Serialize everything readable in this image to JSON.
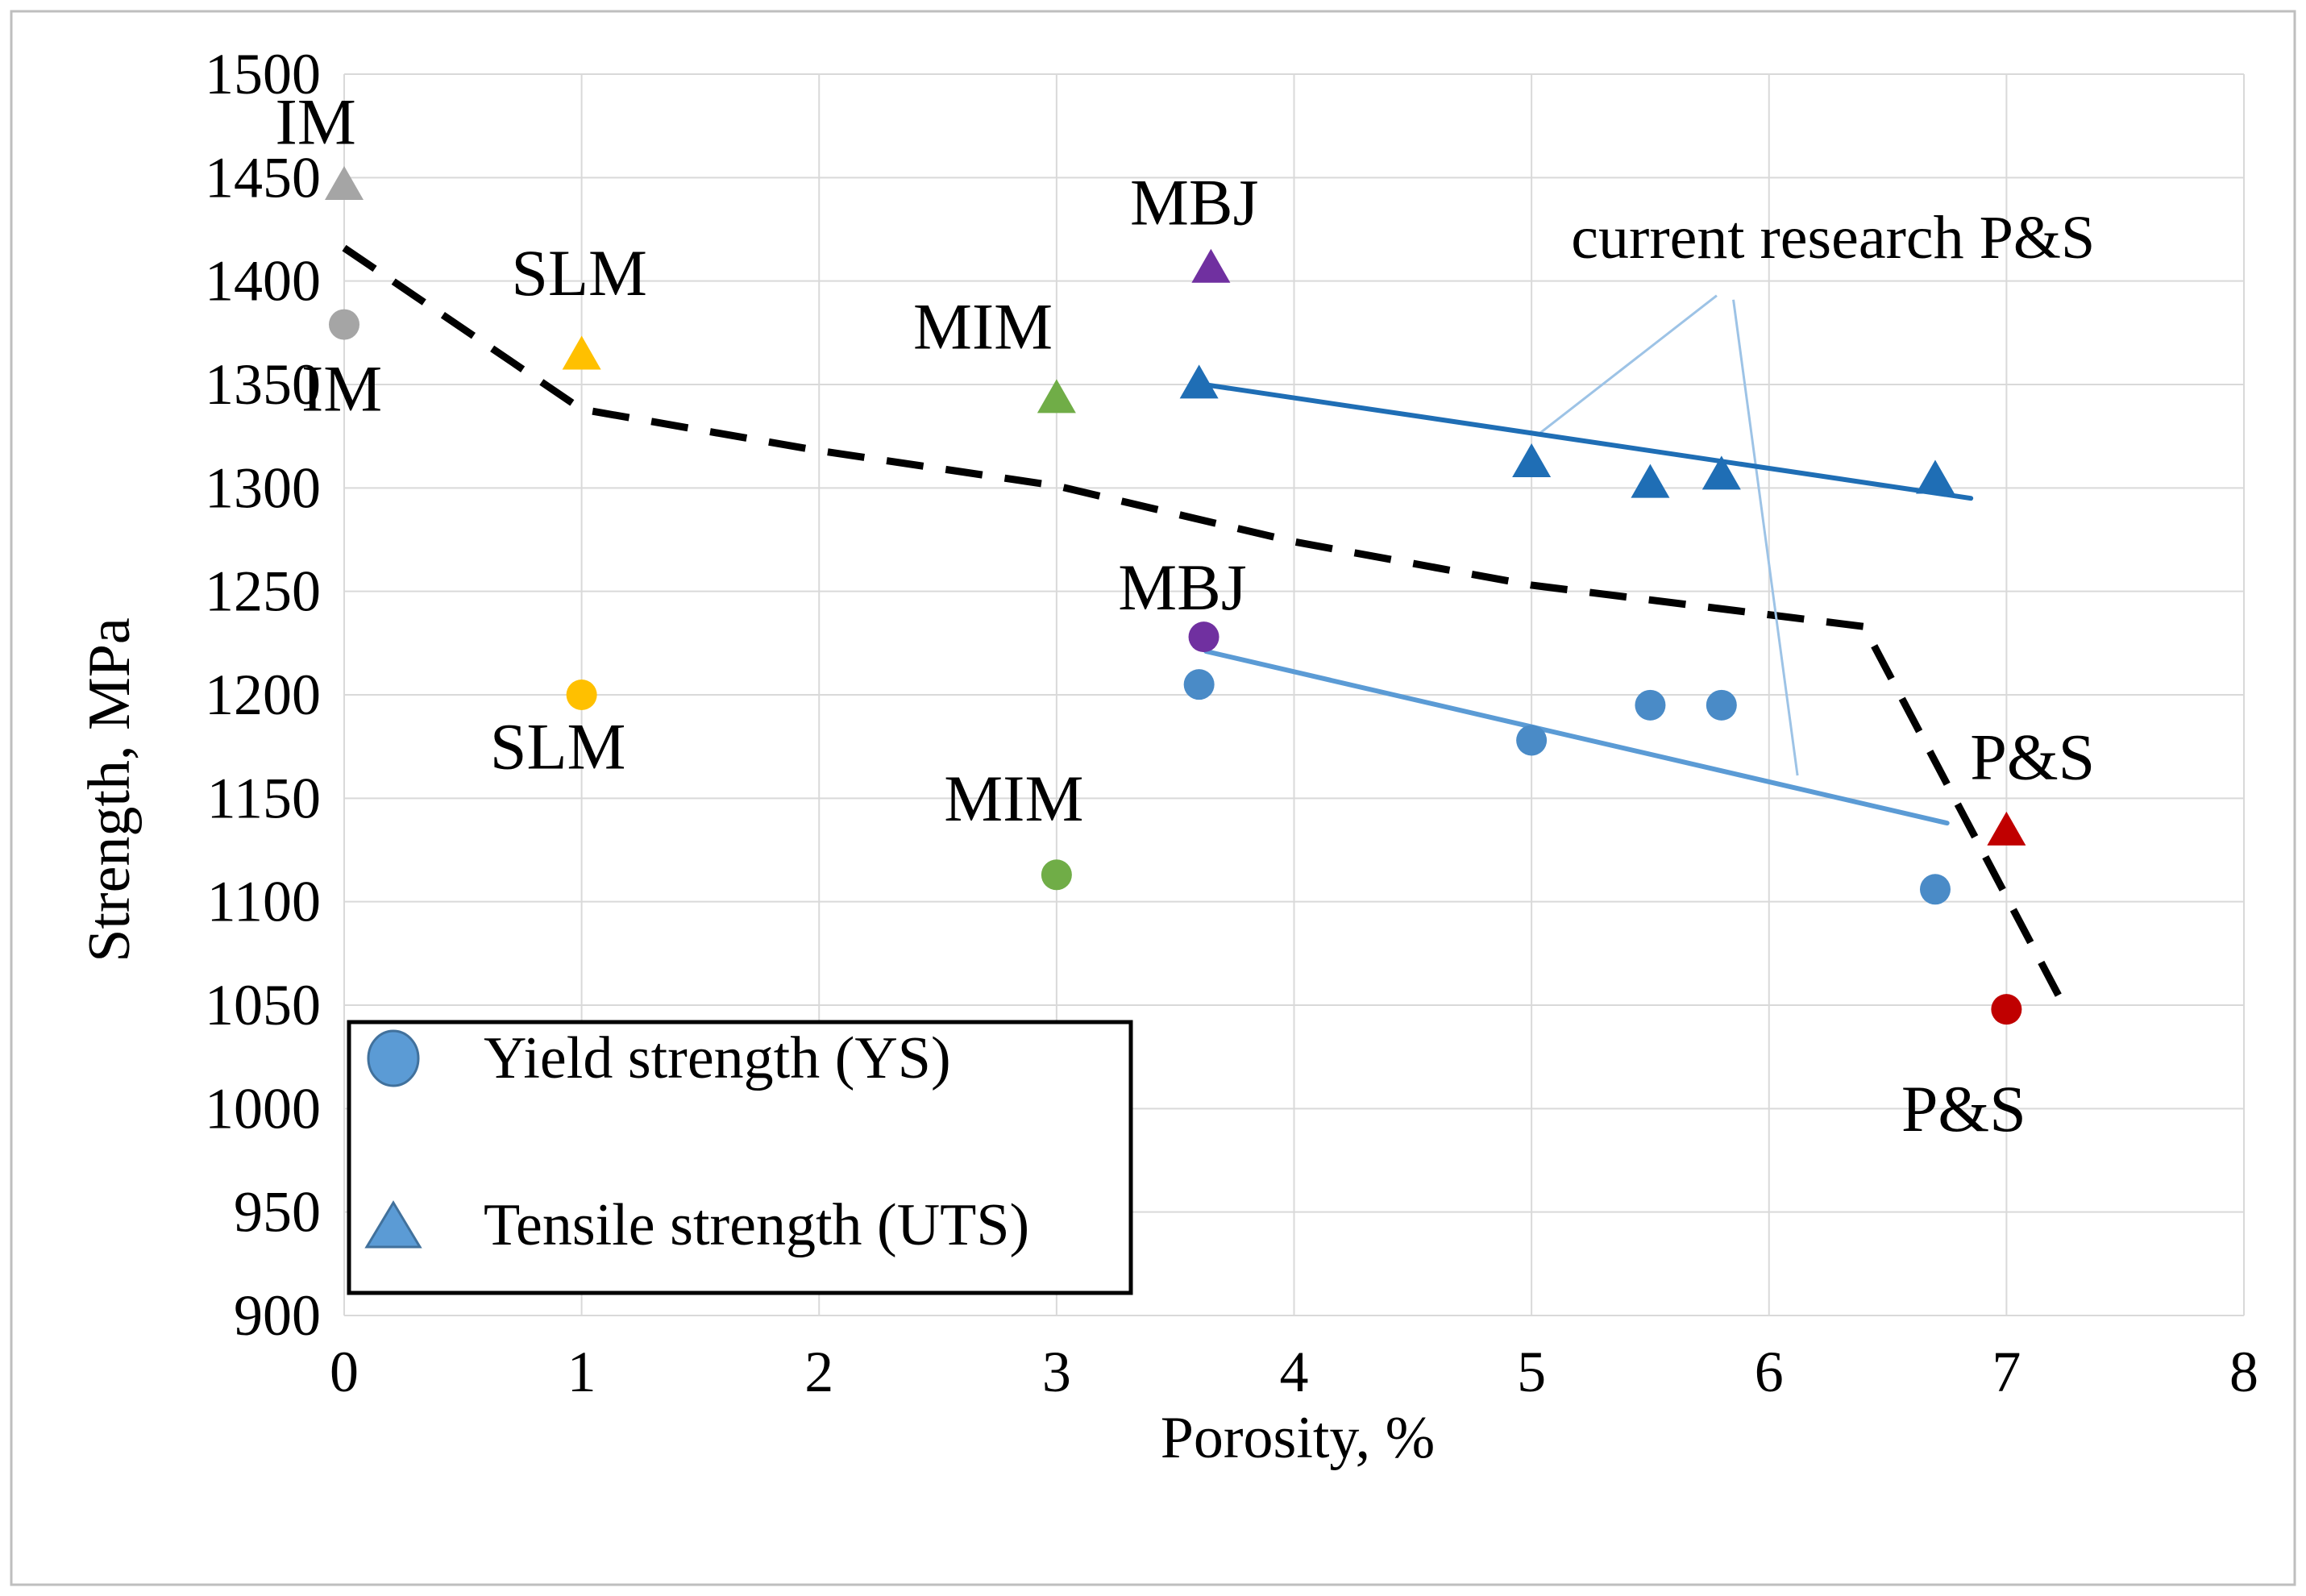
{
  "figure": {
    "background": "#ffffff",
    "border_color": "#bfbfbf"
  },
  "chart_data": {
    "type": "scatter",
    "title": "",
    "xlabel": "Porosity, %",
    "ylabel": "Strength, MPa",
    "xlim": [
      0,
      8
    ],
    "ylim": [
      900,
      1500
    ],
    "x_ticks": [
      0,
      1,
      2,
      3,
      4,
      5,
      6,
      7,
      8
    ],
    "y_ticks": [
      900,
      950,
      1000,
      1050,
      1100,
      1150,
      1200,
      1250,
      1300,
      1350,
      1400,
      1450,
      1500
    ],
    "grid": true,
    "gridline_color": "#d9d9d9",
    "series": [
      {
        "name": "IM",
        "marker_color": "#a5a5a5",
        "uts": [
          [
            0,
            1447
          ]
        ],
        "ys": [
          [
            0,
            1379
          ]
        ]
      },
      {
        "name": "SLM",
        "marker_color": "#ffc000",
        "uts": [
          [
            1,
            1365
          ]
        ],
        "ys": [
          [
            1,
            1200
          ]
        ]
      },
      {
        "name": "MIM",
        "marker_color": "#70ad47",
        "uts": [
          [
            3,
            1344
          ]
        ],
        "ys": [
          [
            3,
            1113
          ]
        ]
      },
      {
        "name": "MBJ",
        "marker_color": "#7030a0",
        "uts": [
          [
            3.65,
            1407
          ]
        ],
        "ys": [
          [
            3.62,
            1228
          ]
        ]
      },
      {
        "name": "current research P&S",
        "uts_color": "#1f6eb5",
        "ys_color": "#4a8bc7",
        "uts": [
          [
            3.6,
            1351
          ],
          [
            5,
            1313
          ],
          [
            5.5,
            1303
          ],
          [
            5.8,
            1307
          ],
          [
            6.7,
            1305
          ]
        ],
        "ys": [
          [
            3.6,
            1205
          ],
          [
            5,
            1178
          ],
          [
            5.5,
            1195
          ],
          [
            5.8,
            1195
          ],
          [
            6.7,
            1106
          ]
        ]
      },
      {
        "name": "P&S",
        "marker_color": "#c00000",
        "uts": [
          [
            7,
            1135
          ]
        ],
        "ys": [
          [
            7,
            1048
          ]
        ]
      }
    ],
    "trend_lines": [
      {
        "series": "UTS",
        "color": "#1f6eb5",
        "width": 6,
        "from": [
          3.62,
          1350
        ],
        "to": [
          6.85,
          1295
        ]
      },
      {
        "series": "YS",
        "color": "#5b9bd5",
        "width": 6,
        "from": [
          3.63,
          1221
        ],
        "to": [
          6.75,
          1138
        ]
      }
    ],
    "dashed_envelope": {
      "color": "#000000",
      "points": [
        [
          0,
          1416
        ],
        [
          1,
          1338
        ],
        [
          2,
          1318
        ],
        [
          3,
          1301
        ],
        [
          4,
          1274
        ],
        [
          5,
          1253
        ],
        [
          6.4,
          1233
        ],
        [
          7.25,
          1048
        ]
      ]
    },
    "callout_lines": [
      {
        "color": "#9dc3e6",
        "from": [
          5.78,
          1393
        ],
        "to": [
          5.03,
          1326
        ]
      },
      {
        "color": "#9dc3e6",
        "from": [
          5.85,
          1391
        ],
        "to": [
          6.12,
          1161
        ]
      }
    ],
    "annotations": [
      {
        "text": "IM",
        "x": -0.12,
        "y": 1477
      },
      {
        "text": "IM",
        "x": -0.01,
        "y": 1348
      },
      {
        "text": "SLM",
        "x": 0.99,
        "y": 1404
      },
      {
        "text": "SLM",
        "x": 0.9,
        "y": 1175
      },
      {
        "text": "MIM",
        "x": 2.69,
        "y": 1378
      },
      {
        "text": "MIM",
        "x": 2.82,
        "y": 1150
      },
      {
        "text": "MBJ",
        "x": 3.58,
        "y": 1438
      },
      {
        "text": "MBJ",
        "x": 3.53,
        "y": 1252
      },
      {
        "text": "current research P&S",
        "x": 6.27,
        "y": 1421,
        "size": 76
      },
      {
        "text": "P&S",
        "x": 7.11,
        "y": 1170
      },
      {
        "text": "P&S",
        "x": 6.82,
        "y": 1000
      }
    ],
    "legend": {
      "items": [
        {
          "marker": "ellipse",
          "label": "Yield strength (YS)"
        },
        {
          "marker": "triangle",
          "label": "Tensile strength (UTS)"
        }
      ],
      "marker_fill": "#5b9bd5",
      "marker_stroke": "#41719c",
      "border_color": "#000000",
      "fill": "#ffffff"
    }
  }
}
